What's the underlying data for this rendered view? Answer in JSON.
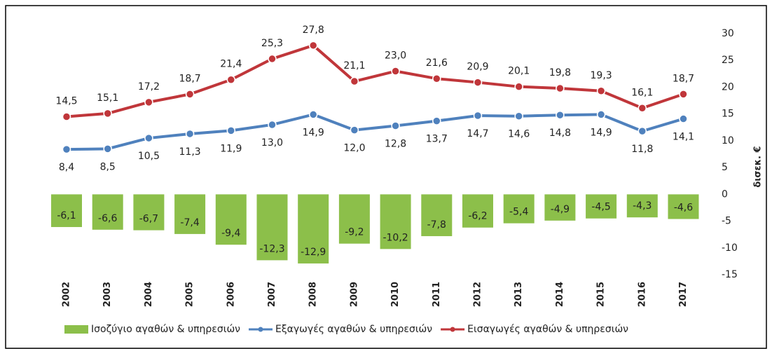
{
  "chart_data": {
    "type": "combo",
    "categories": [
      "2002",
      "2003",
      "2004",
      "2005",
      "2006",
      "2007",
      "2008",
      "2009",
      "2010",
      "2011",
      "2012",
      "2013",
      "2014",
      "2015",
      "2016",
      "2017"
    ],
    "series": [
      {
        "name": "Ισοζύγιο αγαθών & υπηρεσιών",
        "type": "bar",
        "color": "#8cbf4a",
        "values": [
          -6.1,
          -6.6,
          -6.7,
          -7.4,
          -9.4,
          -12.3,
          -12.9,
          -9.2,
          -10.2,
          -7.8,
          -6.2,
          -5.4,
          -4.9,
          -4.5,
          -4.3,
          -4.6
        ],
        "value_labels": [
          "-6,1",
          "-6,6",
          "-6,7",
          "-7,4",
          "-9,4",
          "-12,3",
          "-12,9",
          "-9,2",
          "-10,2",
          "-7,8",
          "-6,2",
          "-5,4",
          "-4,9",
          "-4,5",
          "-4,3",
          "-4,6"
        ]
      },
      {
        "name": "Εξαγωγές αγαθών & υπηρεσιών",
        "type": "line",
        "color": "#4f81bd",
        "values": [
          8.4,
          8.5,
          10.5,
          11.3,
          11.9,
          13.0,
          14.9,
          12.0,
          12.8,
          13.7,
          14.7,
          14.6,
          14.8,
          14.9,
          11.8,
          14.1
        ],
        "value_labels": [
          "8,4",
          "8,5",
          "10,5",
          "11,3",
          "11,9",
          "13,0",
          "14,9",
          "12,0",
          "12,8",
          "13,7",
          "14,7",
          "14,6",
          "14,8",
          "14,9",
          "11,8",
          "14,1"
        ]
      },
      {
        "name": "Εισαγωγές αγαθών & υπηρεσιών",
        "type": "line",
        "color": "#c0363a",
        "values": [
          14.5,
          15.1,
          17.2,
          18.7,
          21.4,
          25.3,
          27.8,
          21.1,
          23.0,
          21.6,
          20.9,
          20.1,
          19.8,
          19.3,
          16.1,
          18.7
        ],
        "value_labels": [
          "14,5",
          "15,1",
          "17,2",
          "18,7",
          "21,4",
          "25,3",
          "27,8",
          "21,1",
          "23,0",
          "21,6",
          "20,9",
          "20,1",
          "19,8",
          "19,3",
          "16,1",
          "18,7"
        ]
      }
    ],
    "y_label": "δισεκ. €",
    "ylim": [
      -15,
      30
    ],
    "yticks": [
      30,
      25,
      20,
      15,
      10,
      5,
      0,
      -5,
      -10,
      -15
    ],
    "legend": "bottom"
  }
}
